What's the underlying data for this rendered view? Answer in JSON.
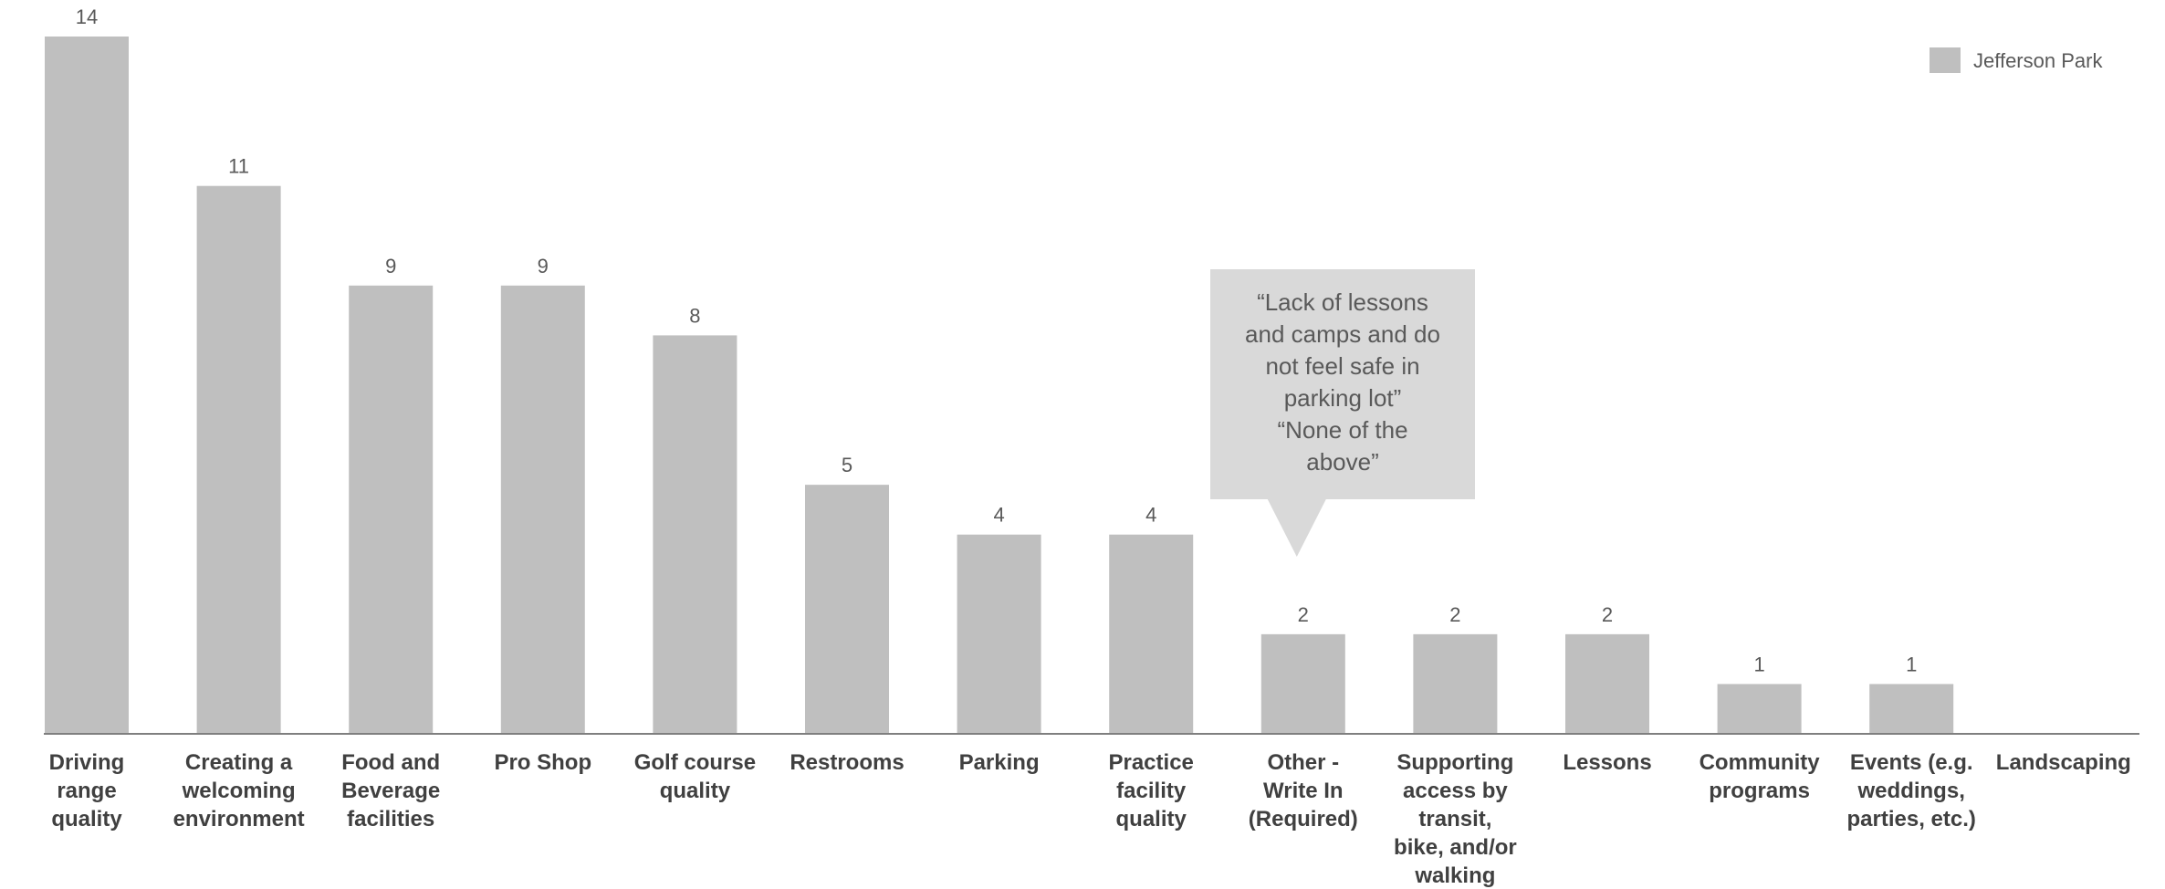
{
  "chart_data": {
    "type": "bar",
    "categories": [
      [
        "Driving",
        "range",
        "quality"
      ],
      [
        "Creating a",
        "welcoming",
        "environment"
      ],
      [
        "Food and",
        "Beverage",
        "facilities"
      ],
      [
        "Pro Shop"
      ],
      [
        "Golf course",
        "quality"
      ],
      [
        "Restrooms"
      ],
      [
        "Parking"
      ],
      [
        "Practice",
        "facility",
        "quality"
      ],
      [
        "Other -",
        "Write In",
        "(Required)"
      ],
      [
        "Supporting",
        "access by",
        "transit,",
        "bike, and/or",
        "walking"
      ],
      [
        "Lessons"
      ],
      [
        "Community",
        "programs"
      ],
      [
        "Events (e.g.",
        "weddings,",
        "parties, etc.)"
      ],
      [
        "Landscaping"
      ]
    ],
    "series": [
      {
        "name": "Jefferson Park",
        "values": [
          14,
          11,
          9,
          9,
          8,
          5,
          4,
          4,
          2,
          2,
          2,
          1,
          1,
          0
        ]
      }
    ],
    "data_labels": [
      "14",
      "11",
      "9",
      "9",
      "8",
      "5",
      "4",
      "4",
      "2",
      "2",
      "2",
      "1",
      "1",
      ""
    ],
    "ylim": [
      0,
      14
    ],
    "grid": false,
    "legend_position": "top-right",
    "bar_color": "#bfbfbf",
    "callout": {
      "lines": [
        "“Lack of lessons",
        "and camps and do",
        "not feel safe in",
        "parking lot”",
        "“None of the",
        "above”"
      ],
      "target_category_index": 8,
      "fill": "#d9d9d9"
    }
  }
}
